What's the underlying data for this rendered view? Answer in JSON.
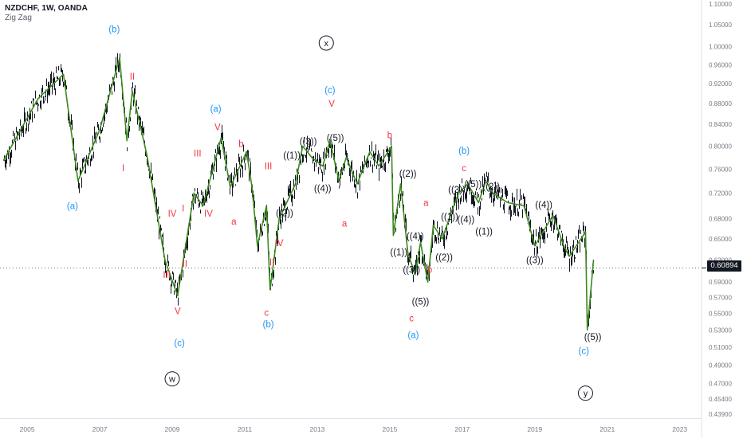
{
  "header": {
    "symbol_line": "NZDCHF, 1W, OANDA",
    "indicator": "Zig Zag"
  },
  "last_price": "0.60894",
  "colors": {
    "price": "#131722",
    "zigzag": "#3c8a1e",
    "blue_label": "#2196f3",
    "red_label": "#f23645",
    "black_label": "#131722",
    "axis_text": "#787b86"
  },
  "chart_data": {
    "type": "line",
    "title": "",
    "xlabel": "",
    "ylabel": "",
    "log_scale": true,
    "x_ticks": [
      "2005",
      "2007",
      "2009",
      "2011",
      "2013",
      "2015",
      "2017",
      "2019",
      "2021",
      "2023"
    ],
    "y_ticks": [
      "1.10000",
      "1.05000",
      "1.00000",
      "0.96000",
      "0.92000",
      "0.88000",
      "0.84000",
      "0.80000",
      "0.76000",
      "0.72000",
      "0.68000",
      "0.65000",
      "0.62000",
      "0.59000",
      "0.57000",
      "0.55000",
      "0.53000",
      "0.51000",
      "0.49000",
      "0.47000",
      "0.45400",
      "0.43900"
    ],
    "ylim": [
      0.435,
      1.11
    ],
    "xlim": [
      2004.25,
      2023.6
    ],
    "zigzag": {
      "name": "Zig Zag",
      "points": [
        [
          2004.35,
          0.775
        ],
        [
          2005.3,
          0.89
        ],
        [
          2006.0,
          0.94
        ],
        [
          2006.4,
          0.74
        ],
        [
          2007.0,
          0.83
        ],
        [
          2007.55,
          0.975
        ],
        [
          2007.75,
          0.81
        ],
        [
          2007.9,
          0.905
        ],
        [
          2008.3,
          0.785
        ],
        [
          2008.8,
          0.62
        ],
        [
          2009.15,
          0.572
        ],
        [
          2009.6,
          0.72
        ],
        [
          2009.85,
          0.7
        ],
        [
          2010.35,
          0.815
        ],
        [
          2010.6,
          0.73
        ],
        [
          2011.05,
          0.79
        ],
        [
          2011.2,
          0.73
        ],
        [
          2011.35,
          0.64
        ],
        [
          2011.6,
          0.7
        ],
        [
          2011.7,
          0.58
        ],
        [
          2011.95,
          0.68
        ],
        [
          2012.4,
          0.735
        ],
        [
          2012.6,
          0.8
        ],
        [
          2012.85,
          0.78
        ],
        [
          2013.15,
          0.765
        ],
        [
          2013.35,
          0.81
        ],
        [
          2013.6,
          0.74
        ],
        [
          2013.8,
          0.78
        ],
        [
          2014.1,
          0.735
        ],
        [
          2014.45,
          0.79
        ],
        [
          2014.7,
          0.765
        ],
        [
          2015.05,
          0.8
        ],
        [
          2015.1,
          0.655
        ],
        [
          2015.3,
          0.735
        ],
        [
          2015.5,
          0.63
        ],
        [
          2015.7,
          0.6
        ],
        [
          2015.85,
          0.645
        ],
        [
          2016.05,
          0.59
        ],
        [
          2016.2,
          0.67
        ],
        [
          2016.45,
          0.65
        ],
        [
          2016.7,
          0.69
        ],
        [
          2016.9,
          0.72
        ],
        [
          2017.15,
          0.735
        ],
        [
          2017.45,
          0.705
        ],
        [
          2017.65,
          0.74
        ],
        [
          2017.85,
          0.72
        ],
        [
          2018.25,
          0.705
        ],
        [
          2018.7,
          0.7
        ],
        [
          2019.0,
          0.64
        ],
        [
          2019.5,
          0.685
        ],
        [
          2019.8,
          0.64
        ],
        [
          2019.95,
          0.625
        ],
        [
          2020.4,
          0.66
        ],
        [
          2020.45,
          0.53
        ],
        [
          2020.62,
          0.62
        ]
      ]
    },
    "wave_labels": [
      {
        "text": "(b)",
        "x": 2007.4,
        "y": 1.04,
        "color": "blue"
      },
      {
        "text": "II",
        "x": 2007.9,
        "y": 0.935,
        "color": "red"
      },
      {
        "text": "I",
        "x": 2007.65,
        "y": 0.762,
        "color": "red"
      },
      {
        "text": "(a)",
        "x": 2006.25,
        "y": 0.7,
        "color": "blue"
      },
      {
        "text": "(a)",
        "x": 2010.2,
        "y": 0.87,
        "color": "blue"
      },
      {
        "text": "V",
        "x": 2010.25,
        "y": 0.835,
        "color": "red"
      },
      {
        "text": "III",
        "x": 2009.7,
        "y": 0.787,
        "color": "red"
      },
      {
        "text": "b",
        "x": 2010.9,
        "y": 0.804,
        "color": "red"
      },
      {
        "text": "I",
        "x": 2009.3,
        "y": 0.696,
        "color": "red"
      },
      {
        "text": "IV",
        "x": 2009.0,
        "y": 0.688,
        "color": "red"
      },
      {
        "text": "IV",
        "x": 2010.0,
        "y": 0.688,
        "color": "red"
      },
      {
        "text": "a",
        "x": 2010.7,
        "y": 0.676,
        "color": "red"
      },
      {
        "text": "III",
        "x": 2008.85,
        "y": 0.6,
        "color": "red"
      },
      {
        "text": "II",
        "x": 2009.35,
        "y": 0.615,
        "color": "red"
      },
      {
        "text": "V",
        "x": 2009.15,
        "y": 0.553,
        "color": "red"
      },
      {
        "text": "(c)",
        "x": 2009.2,
        "y": 0.515,
        "color": "blue"
      },
      {
        "text": "III",
        "x": 2011.65,
        "y": 0.765,
        "color": "red"
      },
      {
        "text": "IV",
        "x": 2011.95,
        "y": 0.644,
        "color": "red"
      },
      {
        "text": "II",
        "x": 2011.75,
        "y": 0.617,
        "color": "red"
      },
      {
        "text": "c",
        "x": 2011.6,
        "y": 0.551,
        "color": "red"
      },
      {
        "text": "(b)",
        "x": 2011.65,
        "y": 0.537,
        "color": "blue"
      },
      {
        "text": "x",
        "x": 2013.25,
        "y": 1.008,
        "color": "black",
        "circled": true
      },
      {
        "text": "(c)",
        "x": 2013.35,
        "y": 0.907,
        "color": "blue"
      },
      {
        "text": "V",
        "x": 2013.4,
        "y": 0.88,
        "color": "red"
      },
      {
        "text": "((1))",
        "x": 2012.3,
        "y": 0.784,
        "color": "black"
      },
      {
        "text": "((3))",
        "x": 2012.75,
        "y": 0.809,
        "color": "black"
      },
      {
        "text": "((5))",
        "x": 2013.5,
        "y": 0.815,
        "color": "black"
      },
      {
        "text": "((4))",
        "x": 2013.15,
        "y": 0.728,
        "color": "black"
      },
      {
        "text": "((2))",
        "x": 2012.1,
        "y": 0.689,
        "color": "black"
      },
      {
        "text": "a",
        "x": 2013.75,
        "y": 0.673,
        "color": "red"
      },
      {
        "text": "b",
        "x": 2015.0,
        "y": 0.82,
        "color": "red"
      },
      {
        "text": "((2))",
        "x": 2015.5,
        "y": 0.752,
        "color": "black"
      },
      {
        "text": "a",
        "x": 2016.0,
        "y": 0.705,
        "color": "red"
      },
      {
        "text": "((4))",
        "x": 2015.7,
        "y": 0.654,
        "color": "black"
      },
      {
        "text": "((1))",
        "x": 2015.25,
        "y": 0.631,
        "color": "black"
      },
      {
        "text": "((3))",
        "x": 2015.6,
        "y": 0.607,
        "color": "black"
      },
      {
        "text": "b",
        "x": 2016.1,
        "y": 0.607,
        "color": "red"
      },
      {
        "text": "((2))",
        "x": 2016.5,
        "y": 0.624,
        "color": "black"
      },
      {
        "text": "((5))",
        "x": 2015.85,
        "y": 0.565,
        "color": "black"
      },
      {
        "text": "c",
        "x": 2015.6,
        "y": 0.544,
        "color": "red"
      },
      {
        "text": "(a)",
        "x": 2015.65,
        "y": 0.524,
        "color": "blue"
      },
      {
        "text": "(b)",
        "x": 2017.05,
        "y": 0.792,
        "color": "blue"
      },
      {
        "text": "c",
        "x": 2017.05,
        "y": 0.762,
        "color": "red"
      },
      {
        "text": "((3))",
        "x": 2016.85,
        "y": 0.726,
        "color": "black"
      },
      {
        "text": "((5))",
        "x": 2017.3,
        "y": 0.735,
        "color": "black"
      },
      {
        "text": "((2))",
        "x": 2017.8,
        "y": 0.731,
        "color": "black"
      },
      {
        "text": "((1))",
        "x": 2016.65,
        "y": 0.683,
        "color": "black"
      },
      {
        "text": "((4))",
        "x": 2017.1,
        "y": 0.679,
        "color": "black"
      },
      {
        "text": "((1))",
        "x": 2017.6,
        "y": 0.661,
        "color": "black"
      },
      {
        "text": "((4))",
        "x": 2019.25,
        "y": 0.702,
        "color": "black"
      },
      {
        "text": "((3))",
        "x": 2019.0,
        "y": 0.62,
        "color": "black"
      },
      {
        "text": "((5))",
        "x": 2020.6,
        "y": 0.522,
        "color": "black"
      },
      {
        "text": "(c)",
        "x": 2020.35,
        "y": 0.506,
        "color": "blue"
      },
      {
        "text": "w",
        "x": 2009.0,
        "y": 0.475,
        "color": "black",
        "circled": true
      },
      {
        "text": "y",
        "x": 2020.4,
        "y": 0.46,
        "color": "black",
        "circled": true
      }
    ]
  }
}
